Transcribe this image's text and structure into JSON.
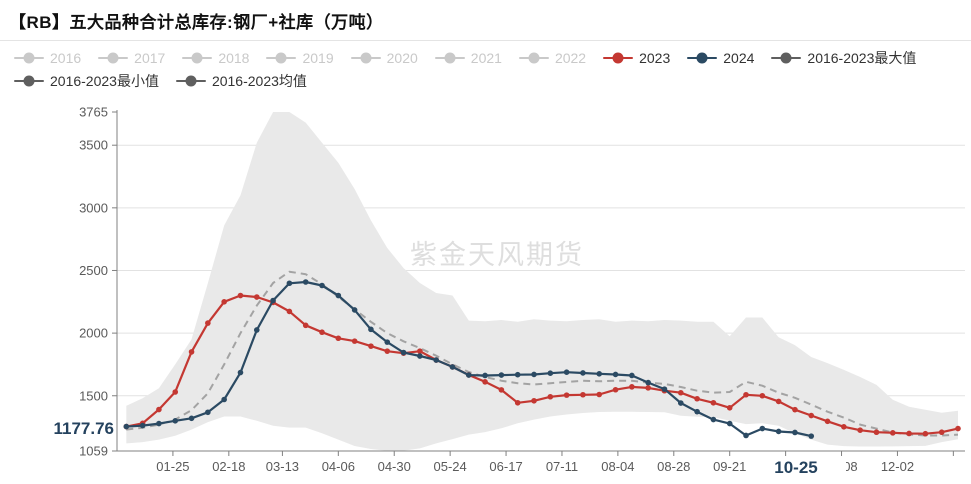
{
  "header": {
    "title": "【RB】五大品种合计总库存:钢厂+社库（万吨）"
  },
  "watermark": "紫金天风期货",
  "legend": {
    "disabled_color": "#c9c9c9",
    "active_text_color": "#333333",
    "rows": [
      [
        {
          "label": "2016",
          "state": "disabled"
        },
        {
          "label": "2017",
          "state": "disabled"
        },
        {
          "label": "2018",
          "state": "disabled"
        },
        {
          "label": "2019",
          "state": "disabled"
        },
        {
          "label": "2020",
          "state": "disabled"
        },
        {
          "label": "2021",
          "state": "disabled"
        },
        {
          "label": "2022",
          "state": "disabled"
        },
        {
          "label": "2023",
          "state": "active",
          "color": "#c43832"
        },
        {
          "label": "2024",
          "state": "active",
          "color": "#2b4a63"
        },
        {
          "label": "2016-2023最大值",
          "state": "active",
          "color": "#5f5f5f"
        }
      ],
      [
        {
          "label": "2016-2023最小值",
          "state": "active",
          "color": "#5f5f5f"
        },
        {
          "label": "2016-2023均值",
          "state": "active",
          "color": "#5f5f5f"
        }
      ]
    ]
  },
  "chart_data": {
    "type": "line",
    "title": "【RB】五大品种合计总库存:钢厂+社库（万吨）",
    "unit": "万吨",
    "legend_position": "top",
    "grid": true,
    "y_axis": {
      "min": 1059,
      "max": 3765,
      "ticks": [
        1059,
        1500,
        2000,
        2500,
        3000,
        3500,
        3765
      ]
    },
    "x_axis": {
      "tick_labels": [
        "01-25",
        "02-18",
        "03-13",
        "04-06",
        "04-30",
        "05-24",
        "06-17",
        "07-11",
        "08-04",
        "08-28",
        "09-21",
        "10-15",
        "11-08",
        "12-02"
      ],
      "tick_days": [
        25,
        49,
        72,
        96,
        120,
        144,
        168,
        192,
        216,
        240,
        264,
        288,
        312,
        336
      ],
      "note": "10-15 and left part of 11-08 are covered by the bold current-date label"
    },
    "current_point": {
      "label": "10-25",
      "value": 1177.76,
      "day": 298
    },
    "sampling": {
      "start_day": 5,
      "step_days": 7
    },
    "colors": {
      "band_fill": "#e9e9e9",
      "mean_line": "#a3a3a3",
      "s2023": "#c43832",
      "s2024": "#2b4a63",
      "axis": "#808080",
      "grid_line": "#e2e2e2",
      "tick_text": "#5a5a5a",
      "highlight_text": "#24425e",
      "watermark_text": "#dedede"
    },
    "series": [
      {
        "name": "2016-2023最大值",
        "role": "band_max",
        "values": [
          1420,
          1480,
          1560,
          1750,
          1950,
          2400,
          2860,
          3100,
          3520,
          3765,
          3765,
          3680,
          3520,
          3360,
          3150,
          2900,
          2680,
          2520,
          2400,
          2320,
          2300,
          2100,
          2095,
          2105,
          2090,
          2110,
          2100,
          2095,
          2105,
          2110,
          2090,
          2100,
          2095,
          2105,
          2100,
          2090,
          2090,
          1975,
          2125,
          2125,
          1967,
          1904,
          1809,
          1761,
          1706,
          1650,
          1587,
          1468,
          1413,
          1389,
          1365,
          1380
        ]
      },
      {
        "name": "2016-2023最小值",
        "role": "band_min",
        "values": [
          1120,
          1130,
          1150,
          1180,
          1230,
          1290,
          1334,
          1334,
          1300,
          1260,
          1246,
          1246,
          1200,
          1150,
          1099,
          1075,
          1060,
          1062,
          1080,
          1120,
          1154,
          1190,
          1210,
          1240,
          1280,
          1310,
          1334,
          1350,
          1362,
          1370,
          1372,
          1372,
          1370,
          1368,
          1340,
          1332,
          1330,
          1300,
          1274,
          1280,
          1260,
          1200,
          1150,
          1110,
          1098,
          1095,
          1095,
          1096,
          1098,
          1100,
          1130,
          1152
        ]
      },
      {
        "name": "2016-2023均值",
        "role": "mean",
        "values": [
          1230,
          1245,
          1270,
          1310,
          1385,
          1520,
          1750,
          2000,
          2220,
          2400,
          2490,
          2470,
          2390,
          2290,
          2190,
          2090,
          2000,
          1935,
          1880,
          1820,
          1750,
          1690,
          1650,
          1620,
          1600,
          1590,
          1600,
          1610,
          1620,
          1615,
          1620,
          1619,
          1605,
          1595,
          1570,
          1540,
          1525,
          1530,
          1611,
          1580,
          1524,
          1484,
          1429,
          1373,
          1326,
          1270,
          1238,
          1207,
          1191,
          1183,
          1183,
          1190
        ]
      },
      {
        "name": "2023",
        "role": "line",
        "values": [
          1254,
          1280,
          1390,
          1530,
          1850,
          2080,
          2250,
          2300,
          2288,
          2245,
          2173,
          2062,
          2007,
          1959,
          1936,
          1896,
          1856,
          1840,
          1856,
          1785,
          1730,
          1666,
          1611,
          1547,
          1444,
          1460,
          1492,
          1505,
          1508,
          1510,
          1548,
          1571,
          1563,
          1540,
          1524,
          1476,
          1444,
          1404,
          1508,
          1500,
          1455,
          1389,
          1342,
          1296,
          1252,
          1225,
          1209,
          1204,
          1199,
          1197,
          1209,
          1238
        ]
      },
      {
        "name": "2024",
        "role": "line",
        "values": [
          1254,
          1262,
          1278,
          1300,
          1320,
          1368,
          1470,
          1685,
          2025,
          2260,
          2398,
          2408,
          2380,
          2300,
          2185,
          2030,
          1928,
          1845,
          1817,
          1785,
          1730,
          1665,
          1662,
          1665,
          1668,
          1670,
          1680,
          1688,
          1682,
          1675,
          1670,
          1662,
          1605,
          1553,
          1442,
          1373,
          1310,
          1278,
          1183,
          1238,
          1215,
          1207,
          1177.76
        ]
      }
    ]
  }
}
